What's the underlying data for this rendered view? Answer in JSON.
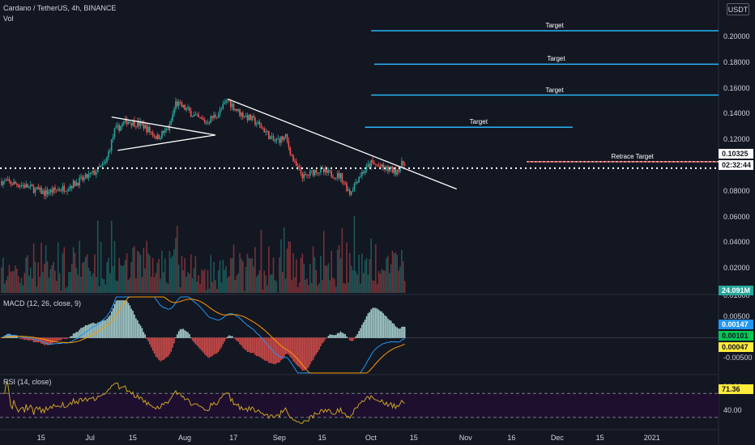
{
  "header": {
    "symbol_line": "Cardano / TetherUS, 4h, BINANCE",
    "vol_label": "Vol",
    "currency_button": "USDT"
  },
  "colors": {
    "background": "#131722",
    "up_candle": "#26a69a",
    "down_candle": "#ef5350",
    "target_line": "#29b6f6",
    "trendline": "#ffffff",
    "macd_line": "#2196f3",
    "signal_line": "#ff9800",
    "rsi_line": "#c9a227",
    "rsi_band": "#1e0f2e"
  },
  "chart_data": [
    {
      "type": "candlestick",
      "title": "Cardano / TetherUS, 4h, BINANCE",
      "x_ticks": [
        "15",
        "Jul",
        "15",
        "Aug",
        "17",
        "Sep",
        "15",
        "Oct",
        "15",
        "Nov",
        "16",
        "Dec",
        "15",
        "2021"
      ],
      "y_ticks": [
        "0.20000",
        "0.18000",
        "0.16000",
        "0.14000",
        "0.12000",
        "0.10000",
        "0.08000",
        "0.06000",
        "0.04000",
        "0.02000",
        "0.01000"
      ],
      "ylim": [
        0.0,
        0.21
      ],
      "last_price": "0.10325",
      "countdown": "02:32:44",
      "price_path": [
        {
          "date": "2020-06-01",
          "price": 0.088
        },
        {
          "date": "2020-06-08",
          "price": 0.085
        },
        {
          "date": "2020-06-15",
          "price": 0.079
        },
        {
          "date": "2020-06-22",
          "price": 0.083
        },
        {
          "date": "2020-06-28",
          "price": 0.09
        },
        {
          "date": "2020-07-01",
          "price": 0.094
        },
        {
          "date": "2020-07-05",
          "price": 0.102
        },
        {
          "date": "2020-07-08",
          "price": 0.127
        },
        {
          "date": "2020-07-12",
          "price": 0.135
        },
        {
          "date": "2020-07-17",
          "price": 0.132
        },
        {
          "date": "2020-07-22",
          "price": 0.122
        },
        {
          "date": "2020-07-26",
          "price": 0.13
        },
        {
          "date": "2020-07-28",
          "price": 0.149
        },
        {
          "date": "2020-08-01",
          "price": 0.143
        },
        {
          "date": "2020-08-04",
          "price": 0.137
        },
        {
          "date": "2020-08-07",
          "price": 0.134
        },
        {
          "date": "2020-08-11",
          "price": 0.141
        },
        {
          "date": "2020-08-14",
          "price": 0.151
        },
        {
          "date": "2020-08-18",
          "price": 0.141
        },
        {
          "date": "2020-08-22",
          "price": 0.136
        },
        {
          "date": "2020-08-26",
          "price": 0.128
        },
        {
          "date": "2020-08-29",
          "price": 0.119
        },
        {
          "date": "2020-09-02",
          "price": 0.122
        },
        {
          "date": "2020-09-05",
          "price": 0.101
        },
        {
          "date": "2020-09-08",
          "price": 0.091
        },
        {
          "date": "2020-09-12",
          "price": 0.097
        },
        {
          "date": "2020-09-16",
          "price": 0.094
        },
        {
          "date": "2020-09-20",
          "price": 0.092
        },
        {
          "date": "2020-09-23",
          "price": 0.079
        },
        {
          "date": "2020-09-26",
          "price": 0.092
        },
        {
          "date": "2020-09-30",
          "price": 0.102
        },
        {
          "date": "2020-10-04",
          "price": 0.098
        },
        {
          "date": "2020-10-08",
          "price": 0.096
        },
        {
          "date": "2020-10-11",
          "price": 0.103
        }
      ],
      "horizontal_levels": [
        {
          "label": "Target",
          "price": 0.205,
          "from": "2020-09-30",
          "to": "2021-02-05"
        },
        {
          "label": "Target",
          "price": 0.179,
          "from": "2020-10-01",
          "to": "2021-02-05"
        },
        {
          "label": "Target",
          "price": 0.155,
          "from": "2020-09-30",
          "to": "2021-02-03"
        },
        {
          "label": "Target",
          "price": 0.13,
          "from": "2020-09-28",
          "to": "2020-12-05"
        },
        {
          "label": "Retrace Target",
          "price": 0.1032,
          "from": "2020-11-20",
          "to": "2021-02-05"
        }
      ],
      "trendlines": [
        {
          "from": {
            "date": "2020-08-14",
            "price": 0.152
          },
          "to": {
            "date": "2020-10-28",
            "price": 0.082
          }
        },
        {
          "from": {
            "date": "2020-07-07",
            "price": 0.138
          },
          "to": {
            "date": "2020-08-10",
            "price": 0.124
          }
        },
        {
          "from": {
            "date": "2020-07-09",
            "price": 0.112
          },
          "to": {
            "date": "2020-08-10",
            "price": 0.124
          }
        }
      ]
    },
    {
      "type": "bar",
      "title": "Vol",
      "last_value": "24.091M"
    },
    {
      "type": "line",
      "title": "MACD (12, 26, close, 9)",
      "y_ticks": [
        "0.01000",
        "0.00500",
        "-0.00500"
      ],
      "ylim": [
        -0.0085,
        0.01
      ],
      "values": {
        "histogram": "0.00047",
        "macd": "0.00147",
        "signal": "0.00101"
      }
    },
    {
      "type": "line",
      "title": "RSI (14, close)",
      "y_ticks": [
        "80.00",
        "40.00"
      ],
      "ylim": [
        15,
        100
      ],
      "bands": [
        70,
        30
      ],
      "last_value": "71.36"
    }
  ]
}
